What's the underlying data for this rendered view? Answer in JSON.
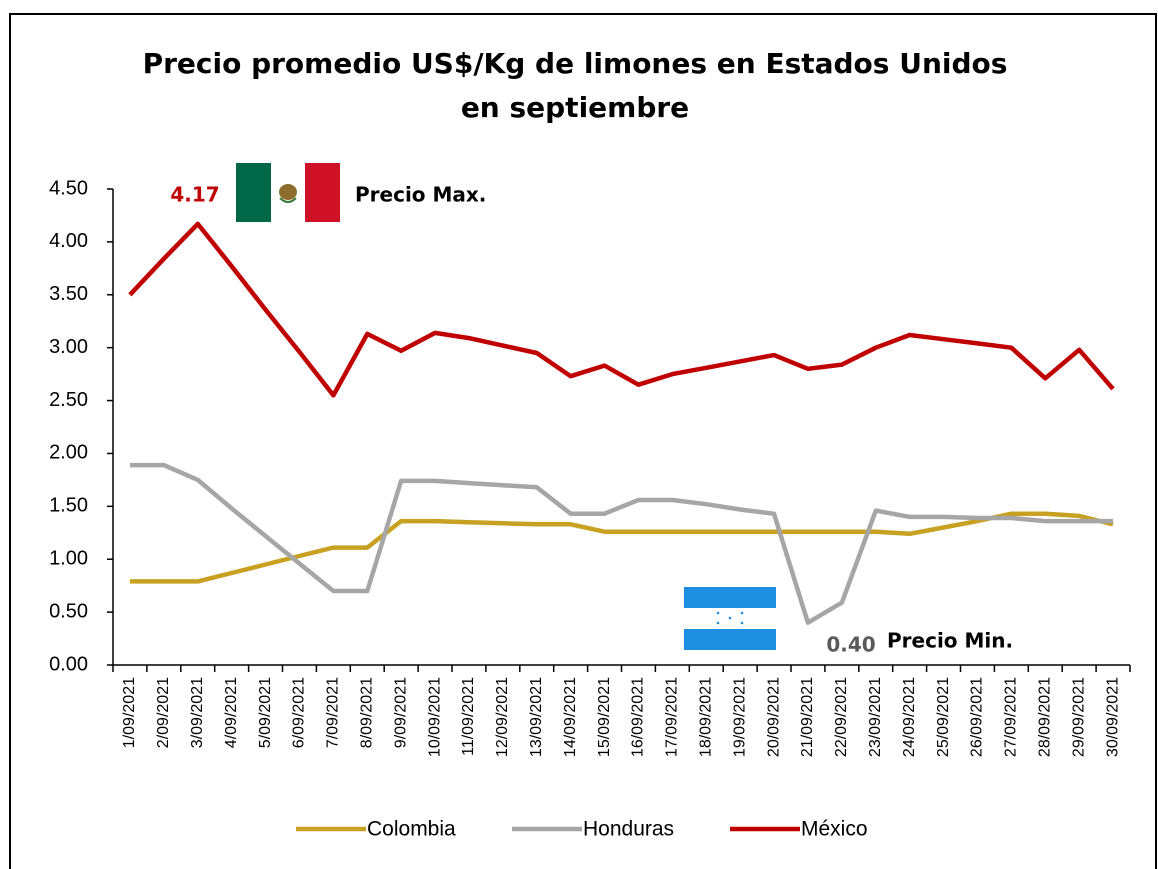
{
  "chart_data": {
    "type": "line",
    "title": "Precio promedio US$/Kg de limones en Estados Unidos en septiembre",
    "categories": [
      "1/09/2021",
      "2/09/2021",
      "3/09/2021",
      "4/09/2021",
      "5/09/2021",
      "6/09/2021",
      "7/09/2021",
      "8/09/2021",
      "9/09/2021",
      "10/09/2021",
      "11/09/2021",
      "12/09/2021",
      "13/09/2021",
      "14/09/2021",
      "15/09/2021",
      "16/09/2021",
      "17/09/2021",
      "18/09/2021",
      "19/09/2021",
      "20/09/2021",
      "21/09/2021",
      "22/09/2021",
      "23/09/2021",
      "24/09/2021",
      "25/09/2021",
      "26/09/2021",
      "27/09/2021",
      "28/09/2021",
      "29/09/2021",
      "30/09/2021"
    ],
    "series": [
      {
        "name": "Colombia",
        "color": "#c8a022",
        "values": [
          0.79,
          0.79,
          0.79,
          0.87,
          0.95,
          1.03,
          1.11,
          1.11,
          1.36,
          1.36,
          1.35,
          1.34,
          1.33,
          1.33,
          1.26,
          1.26,
          1.26,
          1.26,
          1.26,
          1.26,
          1.26,
          1.26,
          1.26,
          1.24,
          1.3,
          1.36,
          1.43,
          1.43,
          1.41,
          1.33
        ]
      },
      {
        "name": "Honduras",
        "color": "#a6a6a6",
        "values": [
          1.89,
          1.89,
          1.75,
          1.48,
          1.22,
          0.96,
          0.7,
          0.7,
          1.74,
          1.74,
          1.72,
          1.7,
          1.68,
          1.43,
          1.43,
          1.56,
          1.56,
          1.52,
          1.47,
          1.43,
          0.4,
          0.59,
          1.46,
          1.4,
          1.4,
          1.39,
          1.39,
          1.36,
          1.36,
          1.36
        ]
      },
      {
        "name": "México",
        "color": "#c00000",
        "values": [
          3.5,
          3.84,
          4.17,
          3.77,
          3.36,
          2.96,
          2.55,
          3.13,
          2.97,
          3.14,
          3.09,
          3.02,
          2.95,
          2.73,
          2.83,
          2.65,
          2.75,
          2.81,
          2.87,
          2.93,
          2.8,
          2.84,
          3.0,
          3.12,
          3.08,
          3.04,
          3.0,
          2.71,
          2.98,
          2.61
        ]
      }
    ],
    "ylim": [
      0,
      4.5
    ],
    "yticks": [
      {
        "value": 0,
        "label": "0.00"
      },
      {
        "value": 0.5,
        "label": "0.50"
      },
      {
        "value": 1,
        "label": "1.00"
      },
      {
        "value": 1.5,
        "label": "1.50"
      },
      {
        "value": 2,
        "label": "2.00"
      },
      {
        "value": 2.5,
        "label": "2.50"
      },
      {
        "value": 3,
        "label": "3.00"
      },
      {
        "value": 3.5,
        "label": "3.50"
      },
      {
        "value": 4,
        "label": "4.00"
      },
      {
        "value": 4.5,
        "label": "4.50"
      }
    ],
    "annotations": [
      "4.17",
      "Precio Max.",
      "0.40",
      "Precio Min."
    ],
    "legend": "bottom"
  }
}
